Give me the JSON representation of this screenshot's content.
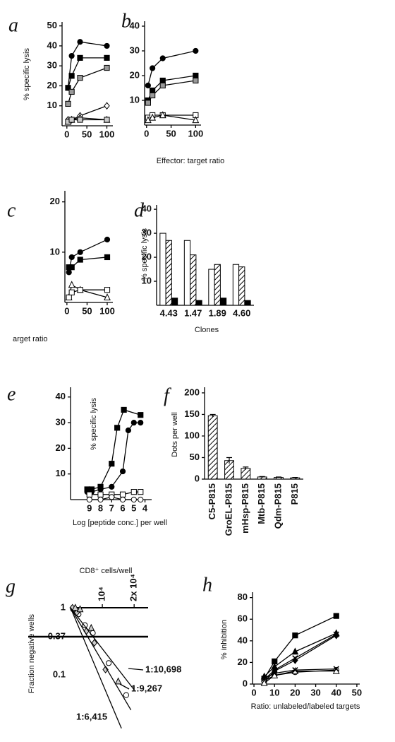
{
  "chart_data": [
    {
      "type": "line",
      "panel": "a",
      "ylabel": "% specific lysis",
      "xlim": [
        -12,
        115
      ],
      "ylim": [
        0,
        52
      ],
      "xticks": [
        0,
        50,
        100
      ],
      "yticks": [
        10,
        20,
        30,
        40,
        50
      ],
      "x": [
        3,
        12,
        33,
        100
      ],
      "series": [
        {
          "marker": "circle",
          "color": "#000000",
          "values": [
            19,
            35,
            42,
            40
          ]
        },
        {
          "marker": "square",
          "color": "#000000",
          "values": [
            19,
            25,
            34,
            34
          ]
        },
        {
          "marker": "square",
          "color": "#999999",
          "values": [
            11,
            17,
            24,
            29
          ]
        },
        {
          "marker": "diamond",
          "color": "#ffffff",
          "values": [
            3,
            3,
            5,
            10
          ]
        },
        {
          "marker": "triangle",
          "color": "#ffffff",
          "values": [
            2,
            3,
            4,
            3
          ]
        },
        {
          "marker": "square",
          "color": "#cccccc",
          "values": [
            2,
            3,
            3,
            3
          ]
        }
      ]
    },
    {
      "type": "line",
      "panel": "b",
      "xlabel": "Effector: target ratio",
      "xlim": [
        -4,
        111
      ],
      "ylim": [
        0,
        42
      ],
      "xticks": [
        0,
        50,
        100
      ],
      "yticks": [
        10,
        20,
        30,
        40
      ],
      "x": [
        3,
        12,
        33,
        100
      ],
      "series": [
        {
          "marker": "circle",
          "color": "#000000",
          "values": [
            16,
            23,
            27,
            30
          ]
        },
        {
          "marker": "square",
          "color": "#000000",
          "values": [
            10,
            14,
            18,
            20
          ]
        },
        {
          "marker": "square",
          "color": "#999999",
          "values": [
            9,
            12,
            16,
            18
          ]
        },
        {
          "marker": "square",
          "color": "#ffffff",
          "values": [
            3,
            4,
            4,
            4
          ]
        },
        {
          "marker": "triangle",
          "color": "#ffffff",
          "values": [
            2,
            3,
            4,
            2
          ]
        }
      ]
    },
    {
      "type": "line",
      "panel": "c",
      "xlabel": "arget ratio",
      "xlim": [
        -5,
        114
      ],
      "ylim": [
        0,
        22.2
      ],
      "xticks": [
        0,
        50,
        100
      ],
      "yticks": [
        10,
        20
      ],
      "x": [
        5,
        12,
        33,
        100
      ],
      "series": [
        {
          "marker": "circle",
          "color": "#000000",
          "values": [
            6,
            9,
            10,
            12.5
          ]
        },
        {
          "marker": "square",
          "color": "#000000",
          "values": [
            7,
            7,
            8.5,
            9
          ]
        },
        {
          "marker": "triangle",
          "color": "#ffffff",
          "values": [
            1,
            3.5,
            2.5,
            1
          ]
        },
        {
          "marker": "square",
          "color": "#ffffff",
          "values": [
            1,
            2,
            2.5,
            2.5
          ]
        }
      ]
    },
    {
      "type": "bar",
      "panel": "d",
      "ylabel": "% specific lysis",
      "xlabel": "Clones",
      "ylim": [
        0,
        41.8
      ],
      "yticks": [
        10,
        20,
        30,
        40
      ],
      "categories": [
        "4.43",
        "1.47",
        "1.89",
        "4.60"
      ],
      "series": [
        {
          "color": "#ffffff",
          "values": [
            30,
            27,
            15,
            17
          ]
        },
        {
          "color": "#000000",
          "pattern": "hatch",
          "values": [
            27,
            21,
            17,
            16
          ]
        },
        {
          "color": "#000000",
          "values": [
            3,
            2,
            3,
            2
          ]
        }
      ]
    },
    {
      "type": "line",
      "panel": "e",
      "ylabel": "% specific lysis",
      "xlabel": "Log [peptide conc.] per well",
      "xlim": [
        10.7,
        3.4
      ],
      "ylim": [
        0,
        43.8
      ],
      "xticks": [
        9,
        8,
        7,
        6,
        5,
        4
      ],
      "yticks": [
        10,
        20,
        30,
        40
      ],
      "series": [
        {
          "marker": "square",
          "color": "#000000",
          "x": [
            9.2,
            8.8,
            8,
            7,
            6.5,
            5.9,
            4.4
          ],
          "values": [
            4,
            4,
            5,
            14,
            28,
            35,
            33
          ]
        },
        {
          "marker": "circle",
          "color": "#000000",
          "x": [
            9.2,
            8.8,
            8,
            7,
            6,
            5.5,
            5,
            4.4
          ],
          "values": [
            3,
            3,
            4,
            5,
            11,
            27,
            30,
            30
          ]
        },
        {
          "marker": "square",
          "color": "#ffffff",
          "x": [
            9,
            8,
            7,
            6,
            5,
            4.4
          ],
          "values": [
            2,
            2,
            2,
            2,
            3,
            3
          ]
        },
        {
          "marker": "circle",
          "color": "#ffffff",
          "x": [
            9,
            8,
            7,
            6,
            5,
            4.4
          ],
          "values": [
            0,
            0,
            1,
            0,
            0,
            0
          ]
        }
      ]
    },
    {
      "type": "bar",
      "panel": "f",
      "ylabel": "Dots per well",
      "ylim": [
        0,
        213
      ],
      "yticks": [
        0,
        50,
        100,
        150,
        200
      ],
      "categories": [
        "C5-P815",
        "GroEL-P815",
        "mHsp-P815",
        "Mtb-P815",
        "Qdm-P815",
        "P815"
      ],
      "series": [
        {
          "color": "#000000",
          "pattern": "hatch",
          "values": [
            147,
            43,
            25,
            5,
            4,
            3
          ],
          "errors": [
            3,
            7,
            3,
            1,
            1,
            1
          ]
        }
      ]
    },
    {
      "type": "scatter",
      "panel": "g",
      "ylabel": "Fraction negative wells",
      "xlabel": "CD8⁺ cells/well",
      "xaxis": "top",
      "ylog": true,
      "xlim": [
        0,
        24400
      ],
      "ylim": [
        0.0144,
        1
      ],
      "xticks": [
        {
          "value": 10000,
          "label": "10⁴"
        },
        {
          "value": 20000,
          "label": "2x 10⁴"
        }
      ],
      "yticks": [
        1,
        0.37,
        0.1
      ],
      "reference_lines": [
        0.37
      ],
      "annotations": [
        "1:10,698",
        "1:9,267",
        "1:6,415"
      ],
      "series": [
        {
          "marker": "circle",
          "color": "#ffffff",
          "x": [
            800,
            2500,
            4500,
            7000,
            12000,
            17500
          ],
          "values": [
            0.95,
            0.8,
            0.55,
            0.42,
            0.15,
            0.05
          ]
        },
        {
          "marker": "diamond",
          "color": "#cccccc",
          "x": [
            600,
            2000,
            5000,
            7500,
            11000
          ],
          "values": [
            1,
            0.85,
            0.45,
            0.3,
            0.12
          ]
        },
        {
          "marker": "triangle",
          "color": "#cccccc",
          "x": [
            1500,
            3000,
            6500,
            15000
          ],
          "values": [
            1,
            0.95,
            0.5,
            0.08
          ]
        },
        {
          "marker": "none",
          "color": "#000000",
          "x": [
            0,
            20000
          ],
          "values": [
            1,
            0.06
          ]
        },
        {
          "marker": "none",
          "color": "#000000",
          "x": [
            0,
            19000
          ],
          "values": [
            1,
            0.03
          ]
        },
        {
          "marker": "none",
          "color": "#000000",
          "x": [
            0,
            16000
          ],
          "values": [
            1,
            0.016
          ]
        }
      ]
    },
    {
      "type": "line",
      "panel": "h",
      "ylabel": "% inhibition",
      "xlabel": "Ratio: unlabeled/labeled targets",
      "xlim": [
        -0.7,
        51.4
      ],
      "ylim": [
        0,
        85
      ],
      "xticks": [
        0,
        10,
        20,
        30,
        40,
        50
      ],
      "yticks": [
        0,
        20,
        40,
        60,
        80
      ],
      "x": [
        5,
        10,
        20,
        40
      ],
      "series": [
        {
          "marker": "square",
          "color": "#000000",
          "values": [
            5,
            21,
            45,
            63
          ]
        },
        {
          "marker": "triangle",
          "color": "#000000",
          "values": [
            7,
            16,
            30,
            47
          ]
        },
        {
          "marker": "x",
          "color": "#000000",
          "values": [
            4,
            13,
            24,
            46
          ]
        },
        {
          "marker": "diamond",
          "color": "#000000",
          "values": [
            2,
            12,
            22,
            45
          ]
        },
        {
          "marker": "circle",
          "color": "#ffffff",
          "values": [
            3,
            8,
            11,
            13
          ]
        },
        {
          "marker": "triangle",
          "color": "#ffffff",
          "values": [
            1,
            8,
            12,
            12
          ]
        },
        {
          "marker": "x",
          "color": "#000000",
          "values": [
            5,
            10,
            13,
            14
          ]
        }
      ]
    }
  ]
}
